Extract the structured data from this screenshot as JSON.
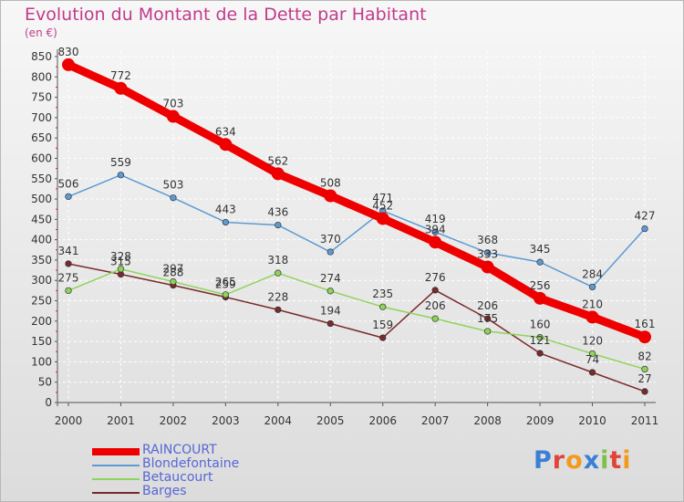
{
  "title": "Evolution du Montant de la Dette par Habitant",
  "unit": "(en €)",
  "logo": {
    "letters": [
      "P",
      "r",
      "o",
      "x",
      "i",
      "t",
      "i"
    ],
    "colors": [
      "#3a7fd5",
      "#e0453a",
      "#f29a1e",
      "#3a7fd5",
      "#7cc24a",
      "#e0453a",
      "#f29a1e"
    ]
  },
  "chart_data": {
    "type": "line",
    "title": "Evolution du Montant de la Dette par Habitant",
    "ylabel": "(en €)",
    "xlabel": "",
    "categories": [
      "2000",
      "2001",
      "2002",
      "2003",
      "2004",
      "2005",
      "2006",
      "2007",
      "2008",
      "2009",
      "2010",
      "2011"
    ],
    "ylim": [
      0,
      850
    ],
    "yticks": [
      0,
      50,
      100,
      150,
      200,
      250,
      300,
      350,
      400,
      450,
      500,
      550,
      600,
      650,
      700,
      750,
      800,
      850
    ],
    "grid": true,
    "legend_position": "bottom-left",
    "series": [
      {
        "name": "RAINCOURT",
        "color": "#ee0000",
        "values": [
          830,
          772,
          703,
          634,
          562,
          508,
          452,
          394,
          333,
          256,
          210,
          161
        ]
      },
      {
        "name": "Blondefontaine",
        "color": "#5e9ad3",
        "values": [
          506,
          559,
          503,
          443,
          436,
          370,
          471,
          419,
          368,
          345,
          284,
          427
        ]
      },
      {
        "name": "Betaucourt",
        "color": "#8fd45a",
        "values": [
          275,
          328,
          297,
          265,
          318,
          274,
          235,
          206,
          175,
          160,
          120,
          82
        ]
      },
      {
        "name": "Barges",
        "color": "#7a2a2a",
        "values": [
          341,
          315,
          288,
          259,
          228,
          194,
          159,
          276,
          206,
          121,
          74,
          27
        ]
      }
    ]
  }
}
